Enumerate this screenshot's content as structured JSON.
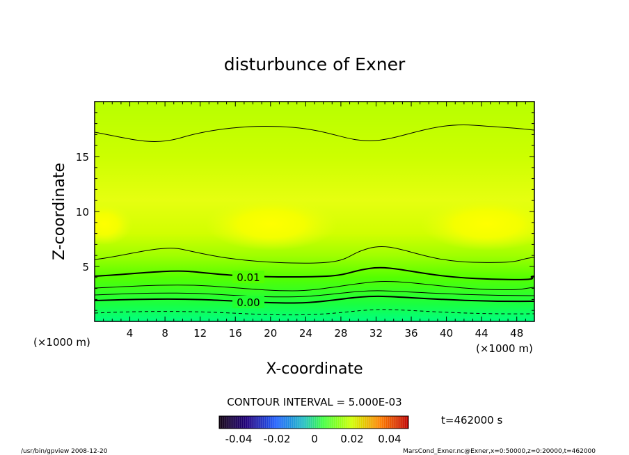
{
  "chart_data": {
    "type": "heatmap",
    "title": "disturbunce of Exner",
    "xlabel": "X-coordinate",
    "ylabel": "Z-coordinate",
    "x_unit_left": "(×1000 m)",
    "x_unit_right": "(×1000 m)",
    "xlim": [
      0,
      50
    ],
    "ylim": [
      0,
      20
    ],
    "x_ticks": [
      4,
      8,
      12,
      16,
      20,
      24,
      28,
      32,
      36,
      40,
      44,
      48
    ],
    "y_ticks": [
      5,
      10,
      15
    ],
    "contour_labels": [
      "0.01",
      "0.00"
    ],
    "contour_interval_text": "CONTOUR INTERVAL = 5.000E-03",
    "colorbar_ticks": [
      "-0.04",
      "-0.02",
      "0",
      "0.02",
      "0.04"
    ],
    "time_label": "t=462000 s",
    "footer_left": "/usr/bin/gpview   2008-12-20",
    "footer_right": "MarsCond_Exner.nc@Exner,x=0:50000,z=0:20000,t=462000",
    "colors": {
      "low": "#00ff80",
      "mid": "#55ff00",
      "high": "#ccff00",
      "peak": "#ffff00"
    }
  }
}
